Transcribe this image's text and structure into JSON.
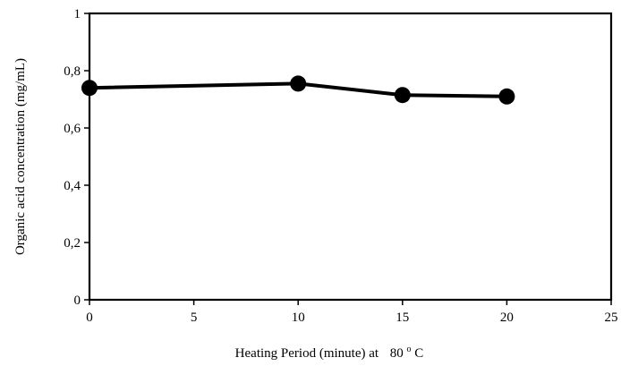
{
  "chart_data": {
    "type": "line",
    "title": "",
    "xlabel": {
      "prefix": "Heating Period (minute) at",
      "value": "80",
      "degree": "o",
      "unit": "C"
    },
    "ylabel": "Organic acid concentration (mg/mL)",
    "xlim": [
      0,
      25
    ],
    "ylim": [
      0,
      1
    ],
    "xticks": [
      0,
      5,
      10,
      15,
      20,
      25
    ],
    "xtick_labels": [
      "0",
      "5",
      "10",
      "15",
      "20",
      "25"
    ],
    "yticks": [
      0,
      0.2,
      0.4,
      0.6,
      0.8,
      1
    ],
    "ytick_labels": [
      "0",
      "0,2",
      "0,4",
      "0,6",
      "0,8",
      "1"
    ],
    "grid": false,
    "legend": "none",
    "series": [
      {
        "color": "#000000",
        "marker": "circle",
        "x": [
          0,
          10,
          15,
          20
        ],
        "y": [
          0.74,
          0.755,
          0.715,
          0.71
        ]
      }
    ]
  }
}
